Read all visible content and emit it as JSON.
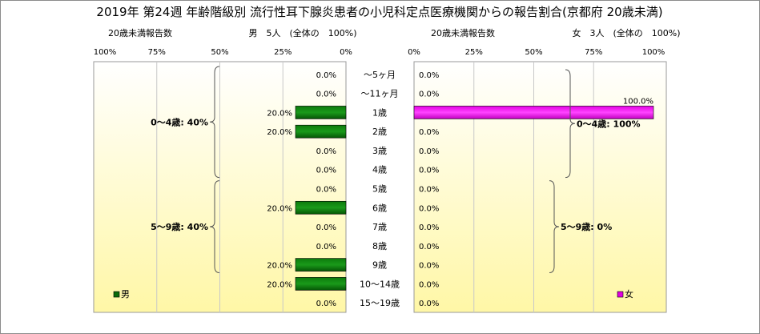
{
  "title": "2019年 第24週 年齢階級別 流行性耳下腺炎患者の小児科定点医療機関からの報告割合(京都府 20歳未満)",
  "left_panel": {
    "caption": "20歳未満報告数",
    "summary": "男　5人　(全体の　100%)",
    "legend": "男",
    "color": "#0a6b0a"
  },
  "right_panel": {
    "caption": "20歳未満報告数",
    "summary": "女　3人　(全体の　100%)",
    "legend": "女",
    "color": "#e000e0"
  },
  "chart_data": [
    {
      "type": "bar",
      "name": "男",
      "orientation": "horizontal-reversed",
      "categories": [
        "～5ヶ月",
        "～11ヶ月",
        "1歳",
        "2歳",
        "3歳",
        "4歳",
        "5歳",
        "6歳",
        "7歳",
        "8歳",
        "9歳",
        "10～14歳",
        "15～19歳"
      ],
      "values": [
        0,
        0,
        20,
        20,
        0,
        0,
        0,
        20,
        0,
        0,
        20,
        20,
        0
      ],
      "value_labels": [
        "0.0%",
        "0.0%",
        "20.0%",
        "20.0%",
        "0.0%",
        "0.0%",
        "0.0%",
        "20.0%",
        "0.0%",
        "0.0%",
        "20.0%",
        "20.0%",
        "0.0%"
      ],
      "xlim": [
        0,
        100
      ],
      "tick_labels": [
        "100%",
        "75%",
        "50%",
        "25%",
        "0%"
      ],
      "groups": [
        {
          "label": "0～4歳: 40%",
          "from": 0,
          "to": 5
        },
        {
          "label": "5～9歳: 40%",
          "from": 6,
          "to": 10
        }
      ]
    },
    {
      "type": "bar",
      "name": "女",
      "orientation": "horizontal",
      "categories": [
        "～5ヶ月",
        "～11ヶ月",
        "1歳",
        "2歳",
        "3歳",
        "4歳",
        "5歳",
        "6歳",
        "7歳",
        "8歳",
        "9歳",
        "10～14歳",
        "15～19歳"
      ],
      "values": [
        0,
        0,
        100,
        0,
        0,
        0,
        0,
        0,
        0,
        0,
        0,
        0,
        0
      ],
      "value_labels": [
        "0.0%",
        "0.0%",
        "100.0%",
        "0.0%",
        "0.0%",
        "0.0%",
        "0.0%",
        "0.0%",
        "0.0%",
        "0.0%",
        "0.0%",
        "0.0%",
        "0.0%"
      ],
      "xlim": [
        0,
        100
      ],
      "tick_labels": [
        "0%",
        "25%",
        "50%",
        "75%",
        "100%"
      ],
      "groups": [
        {
          "label": "0～4歳: 100%",
          "from": 0,
          "to": 5
        },
        {
          "label": "5～9歳: 0%",
          "from": 6,
          "to": 10
        }
      ]
    }
  ]
}
